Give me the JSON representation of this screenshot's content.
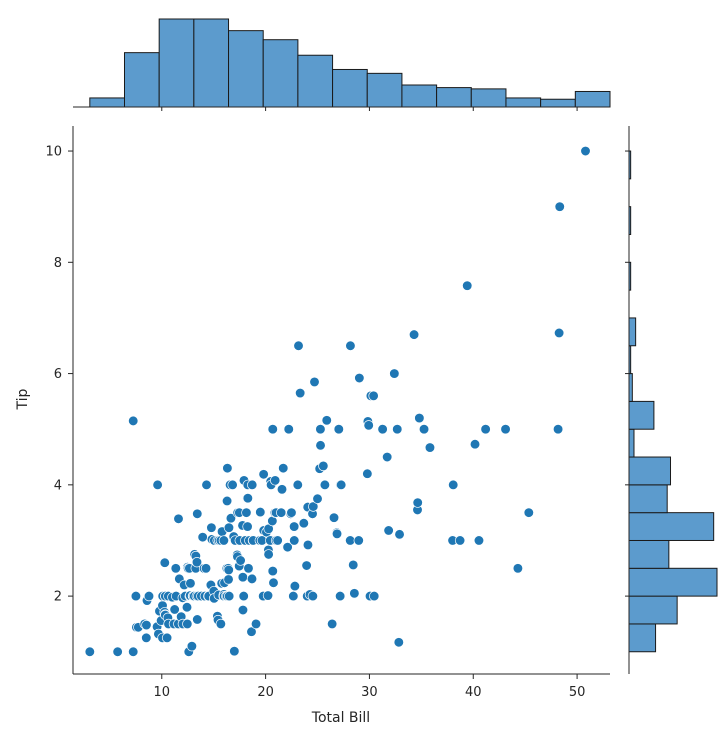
{
  "chart_data": {
    "type": "scatter",
    "title": "",
    "xlabel": "Total Bill",
    "ylabel": "Tip",
    "xlim": [
      1.45,
      53.17
    ],
    "ylim": [
      0.6,
      10.45
    ],
    "xticks": [
      10,
      20,
      30,
      40,
      50
    ],
    "yticks": [
      2,
      4,
      6,
      8,
      10
    ],
    "xtick_labels": [
      "10",
      "20",
      "30",
      "40",
      "50"
    ],
    "ytick_labels": [
      "2",
      "4",
      "6",
      "8",
      "10"
    ],
    "grid": false,
    "legend": false,
    "colors": {
      "points": "#1f77b4",
      "bars": "#5c9bcd",
      "edge": "#1a1a1a",
      "axis": "#262626"
    },
    "points": [
      [
        3.07,
        1.0
      ],
      [
        5.75,
        1.0
      ],
      [
        7.25,
        1.0
      ],
      [
        7.25,
        5.15
      ],
      [
        7.51,
        2.0
      ],
      [
        7.56,
        1.44
      ],
      [
        7.74,
        1.44
      ],
      [
        8.35,
        1.5
      ],
      [
        8.51,
        1.25
      ],
      [
        8.52,
        1.48
      ],
      [
        8.58,
        1.92
      ],
      [
        8.77,
        2.0
      ],
      [
        9.55,
        1.45
      ],
      [
        9.6,
        4.0
      ],
      [
        9.68,
        1.32
      ],
      [
        9.78,
        1.73
      ],
      [
        9.94,
        1.56
      ],
      [
        10.07,
        1.25
      ],
      [
        10.07,
        1.83
      ],
      [
        10.09,
        2.0
      ],
      [
        10.27,
        1.71
      ],
      [
        10.29,
        2.6
      ],
      [
        10.33,
        1.67
      ],
      [
        10.33,
        2.0
      ],
      [
        10.34,
        1.66
      ],
      [
        10.34,
        2.0
      ],
      [
        10.51,
        1.25
      ],
      [
        10.59,
        1.61
      ],
      [
        10.63,
        2.0
      ],
      [
        10.65,
        1.5
      ],
      [
        11.02,
        1.98
      ],
      [
        11.17,
        1.5
      ],
      [
        11.24,
        1.76
      ],
      [
        11.35,
        2.5
      ],
      [
        11.38,
        2.0
      ],
      [
        11.59,
        1.5
      ],
      [
        11.61,
        3.39
      ],
      [
        11.69,
        2.31
      ],
      [
        11.87,
        1.63
      ],
      [
        12.02,
        1.97
      ],
      [
        12.03,
        1.5
      ],
      [
        12.16,
        2.2
      ],
      [
        12.26,
        2.0
      ],
      [
        12.43,
        1.8
      ],
      [
        12.46,
        1.5
      ],
      [
        12.48,
        2.52
      ],
      [
        12.54,
        2.5
      ],
      [
        12.6,
        1.0
      ],
      [
        12.66,
        2.5
      ],
      [
        12.69,
        2.0
      ],
      [
        12.74,
        2.01
      ],
      [
        12.76,
        2.23
      ],
      [
        12.9,
        1.1
      ],
      [
        13.0,
        2.0
      ],
      [
        13.03,
        2.0
      ],
      [
        13.13,
        2.0
      ],
      [
        13.16,
        2.75
      ],
      [
        13.27,
        2.5
      ],
      [
        13.28,
        2.72
      ],
      [
        13.37,
        2.0
      ],
      [
        13.39,
        2.61
      ],
      [
        13.42,
        1.58
      ],
      [
        13.42,
        3.48
      ],
      [
        13.51,
        2.0
      ],
      [
        13.81,
        2.0
      ],
      [
        13.94,
        3.06
      ],
      [
        14.07,
        2.5
      ],
      [
        14.15,
        2.0
      ],
      [
        14.26,
        2.5
      ],
      [
        14.31,
        4.0
      ],
      [
        14.48,
        2.0
      ],
      [
        14.52,
        2.0
      ],
      [
        14.73,
        2.2
      ],
      [
        14.78,
        3.23
      ],
      [
        14.83,
        3.02
      ],
      [
        15.01,
        2.09
      ],
      [
        15.04,
        1.96
      ],
      [
        15.06,
        3.0
      ],
      [
        15.36,
        1.64
      ],
      [
        15.38,
        3.0
      ],
      [
        15.42,
        1.57
      ],
      [
        15.48,
        2.02
      ],
      [
        15.53,
        3.0
      ],
      [
        15.69,
        1.5
      ],
      [
        15.69,
        3.0
      ],
      [
        15.77,
        2.23
      ],
      [
        15.81,
        3.16
      ],
      [
        15.95,
        2.0
      ],
      [
        15.98,
        2.03
      ],
      [
        15.98,
        3.0
      ],
      [
        16.0,
        2.0
      ],
      [
        16.04,
        2.24
      ],
      [
        16.21,
        2.0
      ],
      [
        16.27,
        2.5
      ],
      [
        16.29,
        3.71
      ],
      [
        16.31,
        2.0
      ],
      [
        16.32,
        4.3
      ],
      [
        16.4,
        2.5
      ],
      [
        16.43,
        2.3
      ],
      [
        16.45,
        2.47
      ],
      [
        16.47,
        3.23
      ],
      [
        16.49,
        2.0
      ],
      [
        16.58,
        4.0
      ],
      [
        16.66,
        3.4
      ],
      [
        16.82,
        4.0
      ],
      [
        16.93,
        3.07
      ],
      [
        16.97,
        1.01
      ],
      [
        16.99,
        1.01
      ],
      [
        17.07,
        3.0
      ],
      [
        17.26,
        2.74
      ],
      [
        17.29,
        2.71
      ],
      [
        17.31,
        3.5
      ],
      [
        17.46,
        2.54
      ],
      [
        17.47,
        3.5
      ],
      [
        17.51,
        3.0
      ],
      [
        17.59,
        2.64
      ],
      [
        17.78,
        3.27
      ],
      [
        17.81,
        2.34
      ],
      [
        17.82,
        1.75
      ],
      [
        17.89,
        2.0
      ],
      [
        17.92,
        4.08
      ],
      [
        18.04,
        3.0
      ],
      [
        18.15,
        3.5
      ],
      [
        18.24,
        3.76
      ],
      [
        18.26,
        3.25
      ],
      [
        18.28,
        4.0
      ],
      [
        18.29,
        3.76
      ],
      [
        18.35,
        2.5
      ],
      [
        18.43,
        3.0
      ],
      [
        18.64,
        1.36
      ],
      [
        18.69,
        2.31
      ],
      [
        18.71,
        4.0
      ],
      [
        18.78,
        3.0
      ],
      [
        18.8,
        3.0
      ],
      [
        19.08,
        1.5
      ],
      [
        19.44,
        3.0
      ],
      [
        19.49,
        3.51
      ],
      [
        19.65,
        3.0
      ],
      [
        19.77,
        2.0
      ],
      [
        19.81,
        4.19
      ],
      [
        19.82,
        3.18
      ],
      [
        20.08,
        3.15
      ],
      [
        20.23,
        2.01
      ],
      [
        20.27,
        2.83
      ],
      [
        20.29,
        2.75
      ],
      [
        20.29,
        3.21
      ],
      [
        20.45,
        3.0
      ],
      [
        20.49,
        4.06
      ],
      [
        20.53,
        4.0
      ],
      [
        20.65,
        3.35
      ],
      [
        20.69,
        2.45
      ],
      [
        20.69,
        5.0
      ],
      [
        20.76,
        2.24
      ],
      [
        20.9,
        3.5
      ],
      [
        20.92,
        4.08
      ],
      [
        21.01,
        3.5
      ],
      [
        21.01,
        3.0
      ],
      [
        21.16,
        3.0
      ],
      [
        21.5,
        3.5
      ],
      [
        21.58,
        3.92
      ],
      [
        21.7,
        4.3
      ],
      [
        22.12,
        2.88
      ],
      [
        22.23,
        5.0
      ],
      [
        22.42,
        3.48
      ],
      [
        22.49,
        3.5
      ],
      [
        22.67,
        2.0
      ],
      [
        22.75,
        3.25
      ],
      [
        22.76,
        3.0
      ],
      [
        22.82,
        2.18
      ],
      [
        23.1,
        4.0
      ],
      [
        23.17,
        6.5
      ],
      [
        23.33,
        5.65
      ],
      [
        23.68,
        3.31
      ],
      [
        23.95,
        2.55
      ],
      [
        24.01,
        2.0
      ],
      [
        24.06,
        3.6
      ],
      [
        24.08,
        2.92
      ],
      [
        24.27,
        2.03
      ],
      [
        24.52,
        3.48
      ],
      [
        24.55,
        2.0
      ],
      [
        24.59,
        3.61
      ],
      [
        24.71,
        5.85
      ],
      [
        25.0,
        3.75
      ],
      [
        25.21,
        4.29
      ],
      [
        25.28,
        5.0
      ],
      [
        25.29,
        4.71
      ],
      [
        25.56,
        4.34
      ],
      [
        25.71,
        4.0
      ],
      [
        25.89,
        5.16
      ],
      [
        26.41,
        1.5
      ],
      [
        26.59,
        3.41
      ],
      [
        26.86,
        3.14
      ],
      [
        26.88,
        3.12
      ],
      [
        27.05,
        5.0
      ],
      [
        27.18,
        2.0
      ],
      [
        27.2,
        4.0
      ],
      [
        27.28,
        4.0
      ],
      [
        28.15,
        3.0
      ],
      [
        28.17,
        6.5
      ],
      [
        28.44,
        2.56
      ],
      [
        28.55,
        2.05
      ],
      [
        28.97,
        3.0
      ],
      [
        29.03,
        5.92
      ],
      [
        29.8,
        4.2
      ],
      [
        29.85,
        5.14
      ],
      [
        29.93,
        5.07
      ],
      [
        30.06,
        2.0
      ],
      [
        30.14,
        5.6
      ],
      [
        30.4,
        5.6
      ],
      [
        30.46,
        2.0
      ],
      [
        31.27,
        5.0
      ],
      [
        31.71,
        4.5
      ],
      [
        31.85,
        3.18
      ],
      [
        32.4,
        6.0
      ],
      [
        32.68,
        5.0
      ],
      [
        32.83,
        1.17
      ],
      [
        32.9,
        3.11
      ],
      [
        34.3,
        6.7
      ],
      [
        34.63,
        3.55
      ],
      [
        34.65,
        3.68
      ],
      [
        34.81,
        5.2
      ],
      [
        35.26,
        5.0
      ],
      [
        35.83,
        4.67
      ],
      [
        38.01,
        3.0
      ],
      [
        38.07,
        4.0
      ],
      [
        38.73,
        3.0
      ],
      [
        39.42,
        7.58
      ],
      [
        40.17,
        4.73
      ],
      [
        40.55,
        3.0
      ],
      [
        41.19,
        5.0
      ],
      [
        43.11,
        5.0
      ],
      [
        44.3,
        2.5
      ],
      [
        45.35,
        3.5
      ],
      [
        48.17,
        5.0
      ],
      [
        48.27,
        6.73
      ],
      [
        48.33,
        9.0
      ],
      [
        50.81,
        10.0
      ]
    ],
    "x_histogram": {
      "bin_edges": [
        3.07,
        6.41,
        9.75,
        13.09,
        16.43,
        19.77,
        23.11,
        26.45,
        29.79,
        33.13,
        36.47,
        39.81,
        43.15,
        46.49,
        49.83,
        53.17
      ],
      "counts": [
        7,
        42,
        68,
        68,
        59,
        52,
        40,
        29,
        26,
        17,
        15,
        14,
        7,
        6,
        12
      ]
    },
    "y_histogram": {
      "bin_edges": [
        1.0,
        1.5,
        2.0,
        2.5,
        3.0,
        3.5,
        4.0,
        4.5,
        5.0,
        5.5,
        6.0,
        6.5,
        7.0,
        7.5,
        8.0,
        8.5,
        9.0,
        9.5,
        10.0
      ],
      "counts": [
        16,
        29,
        53,
        24,
        51,
        23,
        25,
        3,
        15,
        2,
        1,
        4,
        0,
        1,
        0,
        1,
        0,
        1
      ]
    }
  }
}
